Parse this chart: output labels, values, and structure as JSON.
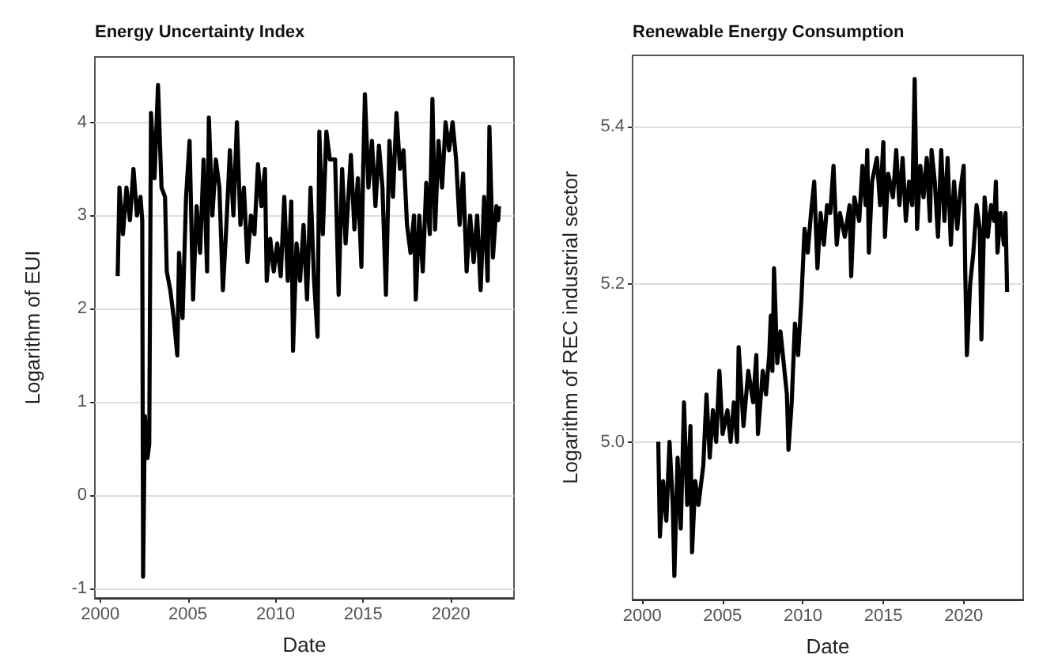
{
  "chart_data": [
    {
      "type": "line",
      "title": "Energy Uncertainty Index",
      "xlabel": "Date",
      "ylabel": "Logarithm of EUI",
      "xlim": [
        1999.7,
        2023.6
      ],
      "xticks": [
        2000,
        2005,
        2010,
        2015,
        2020
      ],
      "ylim": [
        -1.1,
        4.7
      ],
      "yticks": [
        -1,
        0,
        1,
        2,
        3,
        4
      ],
      "grid": "y",
      "series": [
        {
          "color": "#000000",
          "x": [
            2001.0,
            2001.1,
            2001.3,
            2001.5,
            2001.7,
            2001.9,
            2002.1,
            2002.3,
            2002.4,
            2002.45,
            2002.55,
            2002.7,
            2002.8,
            2002.9,
            2003.1,
            2003.3,
            2003.5,
            2003.7,
            2003.8,
            2004.0,
            2004.2,
            2004.4,
            2004.5,
            2004.7,
            2004.9,
            2005.1,
            2005.3,
            2005.5,
            2005.7,
            2005.9,
            2006.1,
            2006.2,
            2006.4,
            2006.6,
            2006.8,
            2007.0,
            2007.2,
            2007.4,
            2007.6,
            2007.8,
            2008.0,
            2008.2,
            2008.4,
            2008.6,
            2008.8,
            2009.0,
            2009.2,
            2009.4,
            2009.5,
            2009.7,
            2009.9,
            2010.1,
            2010.3,
            2010.5,
            2010.7,
            2010.9,
            2011.0,
            2011.2,
            2011.4,
            2011.6,
            2011.8,
            2012.0,
            2012.2,
            2012.4,
            2012.5,
            2012.7,
            2012.9,
            2013.1,
            2013.4,
            2013.6,
            2013.8,
            2014.0,
            2014.3,
            2014.5,
            2014.7,
            2014.9,
            2015.0,
            2015.1,
            2015.3,
            2015.5,
            2015.7,
            2015.9,
            2016.1,
            2016.3,
            2016.5,
            2016.7,
            2016.9,
            2017.1,
            2017.3,
            2017.5,
            2017.7,
            2017.9,
            2018.0,
            2018.2,
            2018.4,
            2018.6,
            2018.8,
            2018.95,
            2019.1,
            2019.3,
            2019.5,
            2019.7,
            2019.9,
            2020.1,
            2020.3,
            2020.5,
            2020.7,
            2020.9,
            2021.1,
            2021.3,
            2021.5,
            2021.7,
            2021.9,
            2022.1,
            2022.2,
            2022.4,
            2022.6,
            2022.7,
            2022.75
          ],
          "values": [
            2.35,
            3.3,
            2.8,
            3.3,
            2.95,
            3.5,
            3.0,
            3.2,
            2.95,
            -0.87,
            0.85,
            0.4,
            0.55,
            4.1,
            3.4,
            4.4,
            3.3,
            3.2,
            2.4,
            2.2,
            1.9,
            1.5,
            2.6,
            1.9,
            3.2,
            3.8,
            2.1,
            3.1,
            2.6,
            3.6,
            2.4,
            4.05,
            3.0,
            3.6,
            3.3,
            2.2,
            2.9,
            3.7,
            3.0,
            4.0,
            2.9,
            3.3,
            2.5,
            3.0,
            2.8,
            3.55,
            3.1,
            3.5,
            2.3,
            2.75,
            2.4,
            2.7,
            2.35,
            3.2,
            2.3,
            3.15,
            1.55,
            2.7,
            2.3,
            2.9,
            2.1,
            3.3,
            2.3,
            1.7,
            3.9,
            2.8,
            3.9,
            3.6,
            3.6,
            2.15,
            3.5,
            2.7,
            3.65,
            2.85,
            3.4,
            2.45,
            3.5,
            4.3,
            3.3,
            3.8,
            3.1,
            3.75,
            3.3,
            2.15,
            3.8,
            3.2,
            4.1,
            3.5,
            3.7,
            2.9,
            2.6,
            3.0,
            2.1,
            3.0,
            2.4,
            3.35,
            2.8,
            4.25,
            2.85,
            3.8,
            3.3,
            4.0,
            3.7,
            4.0,
            3.6,
            2.9,
            3.45,
            2.4,
            3.0,
            2.5,
            3.0,
            2.2,
            3.2,
            2.3,
            3.95,
            2.55,
            3.1,
            2.95,
            3.1
          ]
        }
      ]
    },
    {
      "type": "line",
      "title": "Renewable Energy Consumption",
      "xlabel": "Date",
      "ylabel": "Logarithm of REC industrial sector",
      "xlim": [
        1999.4,
        2023.7
      ],
      "xticks": [
        2000,
        2005,
        2010,
        2015,
        2020
      ],
      "ylim": [
        4.8,
        5.49
      ],
      "yticks": [
        {
          "value": 5,
          "label": "5.0"
        },
        5.2,
        5.4
      ],
      "grid": "y",
      "series": [
        {
          "color": "#000000",
          "x": [
            2001.0,
            2001.1,
            2001.3,
            2001.5,
            2001.7,
            2001.9,
            2002.0,
            2002.2,
            2002.4,
            2002.6,
            2002.8,
            2003.0,
            2003.1,
            2003.3,
            2003.5,
            2003.8,
            2004.0,
            2004.2,
            2004.4,
            2004.6,
            2004.8,
            2005.0,
            2005.3,
            2005.5,
            2005.7,
            2005.9,
            2006.0,
            2006.3,
            2006.6,
            2006.9,
            2007.1,
            2007.2,
            2007.5,
            2007.7,
            2007.9,
            2008.0,
            2008.1,
            2008.2,
            2008.4,
            2008.6,
            2008.8,
            2009.0,
            2009.1,
            2009.3,
            2009.5,
            2009.7,
            2009.9,
            2010.1,
            2010.3,
            2010.5,
            2010.7,
            2010.9,
            2011.1,
            2011.3,
            2011.5,
            2011.7,
            2011.9,
            2012.1,
            2012.3,
            2012.6,
            2012.9,
            2013.0,
            2013.2,
            2013.5,
            2013.7,
            2013.9,
            2014.0,
            2014.1,
            2014.3,
            2014.6,
            2014.8,
            2015.0,
            2015.1,
            2015.3,
            2015.6,
            2015.8,
            2016.0,
            2016.2,
            2016.4,
            2016.6,
            2016.8,
            2016.95,
            2017.1,
            2017.3,
            2017.5,
            2017.7,
            2017.9,
            2018.0,
            2018.2,
            2018.4,
            2018.6,
            2018.8,
            2019.0,
            2019.2,
            2019.4,
            2019.6,
            2019.8,
            2020.0,
            2020.1,
            2020.2,
            2020.4,
            2020.6,
            2020.8,
            2021.0,
            2021.1,
            2021.3,
            2021.5,
            2021.7,
            2021.9,
            2022.0,
            2022.1,
            2022.3,
            2022.5,
            2022.6,
            2022.7
          ],
          "values": [
            5.0,
            4.88,
            4.95,
            4.9,
            5.0,
            4.92,
            4.83,
            4.98,
            4.89,
            5.05,
            4.92,
            5.02,
            4.86,
            4.95,
            4.92,
            4.97,
            5.06,
            4.98,
            5.04,
            5.0,
            5.09,
            5.01,
            5.04,
            5.0,
            5.05,
            5.0,
            5.12,
            5.02,
            5.09,
            5.05,
            5.11,
            5.01,
            5.09,
            5.06,
            5.11,
            5.16,
            5.09,
            5.22,
            5.1,
            5.14,
            5.1,
            5.06,
            4.99,
            5.05,
            5.15,
            5.11,
            5.18,
            5.27,
            5.24,
            5.29,
            5.33,
            5.22,
            5.29,
            5.25,
            5.3,
            5.29,
            5.35,
            5.25,
            5.29,
            5.26,
            5.3,
            5.21,
            5.31,
            5.28,
            5.35,
            5.3,
            5.37,
            5.24,
            5.33,
            5.36,
            5.3,
            5.38,
            5.26,
            5.34,
            5.31,
            5.37,
            5.3,
            5.36,
            5.28,
            5.33,
            5.3,
            5.46,
            5.27,
            5.35,
            5.31,
            5.36,
            5.28,
            5.37,
            5.33,
            5.26,
            5.37,
            5.28,
            5.36,
            5.25,
            5.33,
            5.27,
            5.32,
            5.35,
            5.21,
            5.11,
            5.2,
            5.24,
            5.3,
            5.27,
            5.13,
            5.31,
            5.26,
            5.3,
            5.28,
            5.33,
            5.24,
            5.29,
            5.25,
            5.29,
            5.19
          ]
        }
      ]
    }
  ]
}
